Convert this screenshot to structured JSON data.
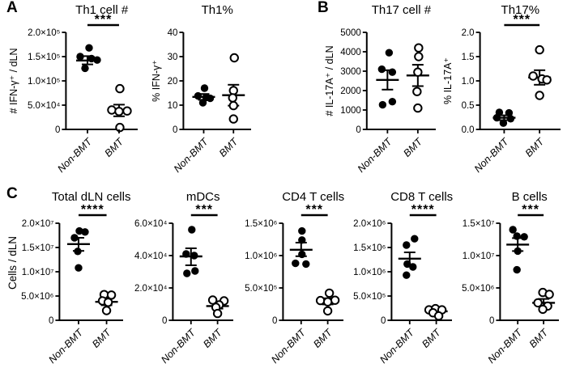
{
  "panels": {
    "a": "A",
    "b": "B",
    "c": "C"
  },
  "row2_ylabel": "Cells / dLN",
  "groups": [
    "Non-BMT",
    "BMT"
  ],
  "marker_colors": {
    "fill": "#000000",
    "open_fill": "#ffffff",
    "stroke": "#000000"
  },
  "chart_data": [
    {
      "id": "th1_count",
      "panel": "A",
      "type": "scatter",
      "title": "Th1 cell #",
      "ylabel": "# IFN-γ⁺ / dLN",
      "ylim": [
        0,
        200000
      ],
      "yticks": [
        0,
        50000,
        100000,
        150000,
        200000
      ],
      "ytick_labels": [
        "0",
        "5.0×10⁴",
        "1.0×10⁵",
        "1.5×10⁵",
        "2.0×10⁵"
      ],
      "categories": [
        "Non-BMT",
        "BMT"
      ],
      "significance": "***",
      "series": [
        {
          "name": "Non-BMT",
          "marker": "filled-circle",
          "mean": 142000,
          "sem": [
            134000,
            151000
          ],
          "points": [
            {
              "dx": 2,
              "y": 168000
            },
            {
              "dx": -9,
              "y": 150000
            },
            {
              "dx": 5,
              "y": 146000
            },
            {
              "dx": 12,
              "y": 143000
            },
            {
              "dx": -3,
              "y": 126000
            }
          ]
        },
        {
          "name": "BMT",
          "marker": "open-circle",
          "mean": 37000,
          "sem": [
            27000,
            51000
          ],
          "points": [
            {
              "dx": 1,
              "y": 84000
            },
            {
              "dx": -9,
              "y": 40000
            },
            {
              "dx": 0,
              "y": 37000
            },
            {
              "dx": 10,
              "y": 38000
            },
            {
              "dx": 1,
              "y": 4000
            }
          ]
        }
      ]
    },
    {
      "id": "th1_pct",
      "panel": "A",
      "type": "scatter",
      "title": "Th1%",
      "ylabel": "% IFN-γ⁺",
      "ylim": [
        0,
        40
      ],
      "yticks": [
        0,
        10,
        20,
        30,
        40
      ],
      "ytick_labels": [
        "0",
        "10",
        "20",
        "30",
        "40"
      ],
      "categories": [
        "Non-BMT",
        "BMT"
      ],
      "significance": "",
      "series": [
        {
          "name": "Non-BMT",
          "marker": "filled-circle",
          "mean": 13.4,
          "sem": [
            12.2,
            14.6
          ],
          "points": [
            {
              "dx": 1,
              "y": 17
            },
            {
              "dx": -7,
              "y": 13.8
            },
            {
              "dx": 3,
              "y": 13.2
            },
            {
              "dx": 8,
              "y": 12.8
            },
            {
              "dx": -1,
              "y": 11
            }
          ]
        },
        {
          "name": "BMT",
          "marker": "open-circle",
          "mean": 14.1,
          "sem": [
            9.8,
            18.4
          ],
          "points": [
            {
              "dx": 1,
              "y": 29.5
            },
            {
              "dx": 0,
              "y": 16
            },
            {
              "dx": -1,
              "y": 13
            },
            {
              "dx": 0,
              "y": 9.8
            },
            {
              "dx": 0,
              "y": 4.3
            }
          ]
        }
      ]
    },
    {
      "id": "th17_count",
      "panel": "B",
      "type": "scatter",
      "title": "Th17 cell #",
      "ylabel": "# IL-17A⁺ / dLN",
      "ylim": [
        0,
        5000
      ],
      "yticks": [
        0,
        1000,
        2000,
        3000,
        4000,
        5000
      ],
      "ytick_labels": [
        "0",
        "1000",
        "2000",
        "3000",
        "4000",
        "5000"
      ],
      "categories": [
        "Non-BMT",
        "BMT"
      ],
      "significance": "",
      "series": [
        {
          "name": "Non-BMT",
          "marker": "filled-circle",
          "mean": 2550,
          "sem": [
            2050,
            3050
          ],
          "points": [
            {
              "dx": 2,
              "y": 3950
            },
            {
              "dx": -7,
              "y": 3100
            },
            {
              "dx": 6,
              "y": 2950
            },
            {
              "dx": 6,
              "y": 1430
            },
            {
              "dx": -6,
              "y": 1270
            }
          ]
        },
        {
          "name": "BMT",
          "marker": "open-circle",
          "mean": 2780,
          "sem": [
            2230,
            3330
          ],
          "points": [
            {
              "dx": 1,
              "y": 4200
            },
            {
              "dx": 1,
              "y": 3750
            },
            {
              "dx": 0,
              "y": 2950
            },
            {
              "dx": -1,
              "y": 1950
            },
            {
              "dx": 0,
              "y": 1100
            }
          ]
        }
      ]
    },
    {
      "id": "th17_pct",
      "panel": "B",
      "type": "scatter",
      "title": "Th17%",
      "ylabel": "% IL-17A⁺",
      "ylim": [
        0,
        2
      ],
      "yticks": [
        0,
        0.5,
        1.0,
        1.5,
        2.0
      ],
      "ytick_labels": [
        "0.0",
        "0.5",
        "1.0",
        "1.5",
        "2.0"
      ],
      "categories": [
        "Non-BMT",
        "BMT"
      ],
      "significance": "***",
      "series": [
        {
          "name": "Non-BMT",
          "marker": "filled-circle",
          "mean": 0.24,
          "sem": [
            0.19,
            0.29
          ],
          "points": [
            {
              "dx": -6,
              "y": 0.35
            },
            {
              "dx": 6,
              "y": 0.34
            },
            {
              "dx": -9,
              "y": 0.24
            },
            {
              "dx": 8,
              "y": 0.22
            },
            {
              "dx": -1,
              "y": 0.13
            }
          ]
        },
        {
          "name": "BMT",
          "marker": "open-circle",
          "mean": 1.07,
          "sem": [
            0.92,
            1.22
          ],
          "points": [
            {
              "dx": 0,
              "y": 1.64
            },
            {
              "dx": -8,
              "y": 1.1
            },
            {
              "dx": 3,
              "y": 1.04
            },
            {
              "dx": 9,
              "y": 1.02
            },
            {
              "dx": 0,
              "y": 0.7
            }
          ]
        }
      ]
    },
    {
      "id": "total_dln",
      "panel": "C",
      "type": "scatter",
      "title": "Total dLN cells",
      "ylabel": "",
      "ylim": [
        0,
        20000000
      ],
      "yticks": [
        0,
        5000000,
        10000000,
        15000000,
        20000000
      ],
      "ytick_labels": [
        "0",
        "5.0×10⁶",
        "1.0×10⁷",
        "1.5×10⁷",
        "2.0×10⁷"
      ],
      "categories": [
        "Non-BMT",
        "BMT"
      ],
      "significance": "****",
      "series": [
        {
          "name": "Non-BMT",
          "marker": "filled-circle",
          "mean": 15700000,
          "sem": [
            14300000,
            17000000
          ],
          "points": [
            {
              "dx": 1,
              "y": 18400000
            },
            {
              "dx": 8,
              "y": 18200000
            },
            {
              "dx": -5,
              "y": 17000000
            },
            {
              "dx": -1,
              "y": 14200000
            },
            {
              "dx": 0,
              "y": 10800000
            }
          ]
        },
        {
          "name": "BMT",
          "marker": "open-circle",
          "mean": 3800000,
          "sem": [
            3100000,
            4500000
          ],
          "points": [
            {
              "dx": -3,
              "y": 5300000
            },
            {
              "dx": 6,
              "y": 5200000
            },
            {
              "dx": -5,
              "y": 4000000
            },
            {
              "dx": 2,
              "y": 3700000
            },
            {
              "dx": 0,
              "y": 2000000
            }
          ]
        }
      ]
    },
    {
      "id": "mdcs",
      "panel": "C",
      "type": "scatter",
      "title": "mDCs",
      "ylabel": "",
      "ylim": [
        0,
        60000
      ],
      "yticks": [
        0,
        20000,
        40000,
        60000
      ],
      "ytick_labels": [
        "0",
        "2.0×10⁴",
        "4.0×10⁴",
        "6.0×10⁴"
      ],
      "categories": [
        "Non-BMT",
        "BMT"
      ],
      "significance": "***",
      "series": [
        {
          "name": "Non-BMT",
          "marker": "filled-circle",
          "mean": 39500,
          "sem": [
            34000,
            44500
          ],
          "points": [
            {
              "dx": 1,
              "y": 56000
            },
            {
              "dx": -6,
              "y": 41000
            },
            {
              "dx": 4,
              "y": 40000
            },
            {
              "dx": 5,
              "y": 30500
            },
            {
              "dx": -5,
              "y": 29000
            }
          ]
        },
        {
          "name": "BMT",
          "marker": "open-circle",
          "mean": 8800,
          "sem": [
            7200,
            10500
          ],
          "points": [
            {
              "dx": -6,
              "y": 12500
            },
            {
              "dx": 8,
              "y": 12000
            },
            {
              "dx": 2,
              "y": 9500
            },
            {
              "dx": -2,
              "y": 8000
            },
            {
              "dx": 0,
              "y": 4200
            }
          ]
        }
      ]
    },
    {
      "id": "cd4",
      "panel": "C",
      "type": "scatter",
      "title": "CD4 T cells",
      "ylabel": "",
      "ylim": [
        0,
        1500000
      ],
      "yticks": [
        0,
        500000,
        1000000,
        1500000
      ],
      "ytick_labels": [
        "0",
        "5.0×10⁵",
        "1.0×10⁶",
        "1.5×10⁶"
      ],
      "categories": [
        "Non-BMT",
        "BMT"
      ],
      "significance": "***",
      "series": [
        {
          "name": "Non-BMT",
          "marker": "filled-circle",
          "mean": 1090000,
          "sem": [
            990000,
            1200000
          ],
          "points": [
            {
              "dx": 1,
              "y": 1380000
            },
            {
              "dx": 1,
              "y": 1240000
            },
            {
              "dx": 1,
              "y": 1020000
            },
            {
              "dx": -7,
              "y": 880000
            },
            {
              "dx": 6,
              "y": 870000
            }
          ]
        },
        {
          "name": "BMT",
          "marker": "open-circle",
          "mean": 290000,
          "sem": [
            245000,
            340000
          ],
          "points": [
            {
              "dx": 2,
              "y": 420000
            },
            {
              "dx": -9,
              "y": 305000
            },
            {
              "dx": 9,
              "y": 310000
            },
            {
              "dx": 0,
              "y": 285000
            },
            {
              "dx": 0,
              "y": 145000
            }
          ]
        }
      ]
    },
    {
      "id": "cd8",
      "panel": "C",
      "type": "scatter",
      "title": "CD8 T cells",
      "ylabel": "",
      "ylim": [
        0,
        2000000
      ],
      "yticks": [
        0,
        500000,
        1000000,
        1500000,
        2000000
      ],
      "ytick_labels": [
        "0",
        "5.0×10⁵",
        "1.0×10⁶",
        "1.5×10⁶",
        "2.0×10⁶"
      ],
      "categories": [
        "Non-BMT",
        "BMT"
      ],
      "significance": "****",
      "series": [
        {
          "name": "Non-BMT",
          "marker": "filled-circle",
          "mean": 1270000,
          "sem": [
            1140000,
            1400000
          ],
          "points": [
            {
              "dx": 6,
              "y": 1680000
            },
            {
              "dx": -4,
              "y": 1550000
            },
            {
              "dx": -3,
              "y": 1160000
            },
            {
              "dx": 4,
              "y": 1100000
            },
            {
              "dx": -4,
              "y": 930000
            }
          ]
        },
        {
          "name": "BMT",
          "marker": "open-circle",
          "mean": 185000,
          "sem": [
            150000,
            220000
          ],
          "points": [
            {
              "dx": -9,
              "y": 215000
            },
            {
              "dx": -1,
              "y": 240000
            },
            {
              "dx": 7,
              "y": 215000
            },
            {
              "dx": -4,
              "y": 155000
            },
            {
              "dx": 3,
              "y": 90000
            }
          ]
        }
      ]
    },
    {
      "id": "bcells",
      "panel": "C",
      "type": "scatter",
      "title": "B cells",
      "ylabel": "",
      "ylim": [
        0,
        15000000
      ],
      "yticks": [
        0,
        5000000,
        10000000,
        15000000
      ],
      "ytick_labels": [
        "0",
        "5.0×10⁶",
        "1.0×10⁷",
        "1.5×10⁷"
      ],
      "categories": [
        "Non-BMT",
        "BMT"
      ],
      "significance": "***",
      "series": [
        {
          "name": "Non-BMT",
          "marker": "filled-circle",
          "mean": 11700000,
          "sem": [
            10700000,
            12700000
          ],
          "points": [
            {
              "dx": -6,
              "y": 14000000
            },
            {
              "dx": -1,
              "y": 13000000
            },
            {
              "dx": 8,
              "y": 12900000
            },
            {
              "dx": 0,
              "y": 10700000
            },
            {
              "dx": -1,
              "y": 7800000
            }
          ]
        },
        {
          "name": "BMT",
          "marker": "open-circle",
          "mean": 2700000,
          "sem": [
            2150000,
            3300000
          ],
          "points": [
            {
              "dx": -1,
              "y": 4300000
            },
            {
              "dx": 7,
              "y": 4000000
            },
            {
              "dx": -7,
              "y": 2700000
            },
            {
              "dx": 5,
              "y": 2200000
            },
            {
              "dx": -1,
              "y": 1700000
            }
          ]
        }
      ]
    }
  ]
}
